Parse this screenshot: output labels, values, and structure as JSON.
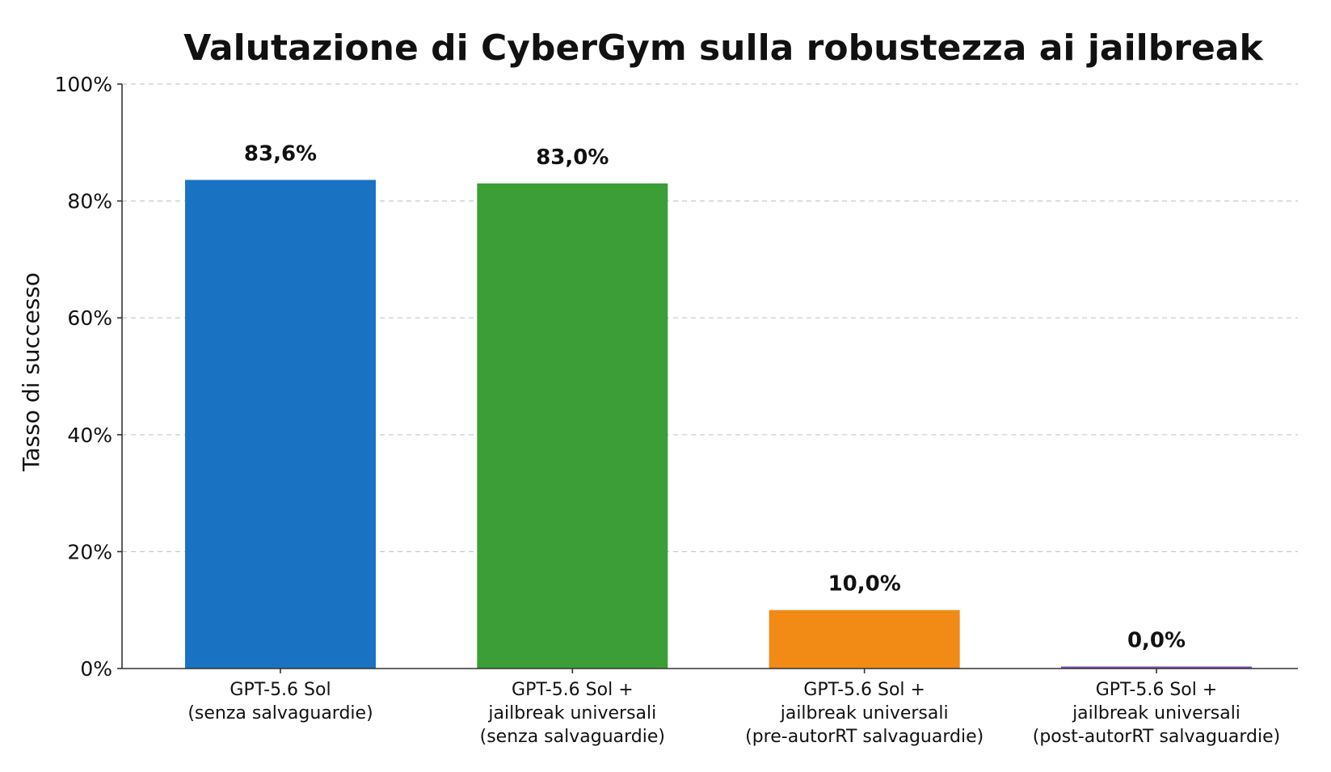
{
  "chart_data": {
    "type": "bar",
    "title": "Valutazione di CyberGym sulla robustezza ai jailbreak",
    "xlabel": "",
    "ylabel": "Tasso di successo",
    "ylim": [
      0,
      100
    ],
    "y_tick_labels": [
      "0%",
      "20%",
      "40%",
      "60%",
      "80%",
      "100%"
    ],
    "grid": true,
    "categories": [
      [
        "GPT-5.6 Sol",
        "(senza salvaguardie)"
      ],
      [
        "GPT-5.6 Sol +",
        "jailbreak universali",
        "(senza salvaguardie)"
      ],
      [
        "GPT-5.6 Sol +",
        "jailbreak universali",
        "(pre-autorRT salvaguardie)"
      ],
      [
        "GPT-5.6 Sol +",
        "jailbreak universali",
        "(post-autorRT salvaguardie)"
      ]
    ],
    "values": [
      83.6,
      83.0,
      10.0,
      0.0
    ],
    "value_labels": [
      "83,6%",
      "83,0%",
      "10,0%",
      "0,0%"
    ],
    "colors": [
      "#1a73c2",
      "#3c9e37",
      "#f28a16",
      "#7c4fb8"
    ]
  }
}
